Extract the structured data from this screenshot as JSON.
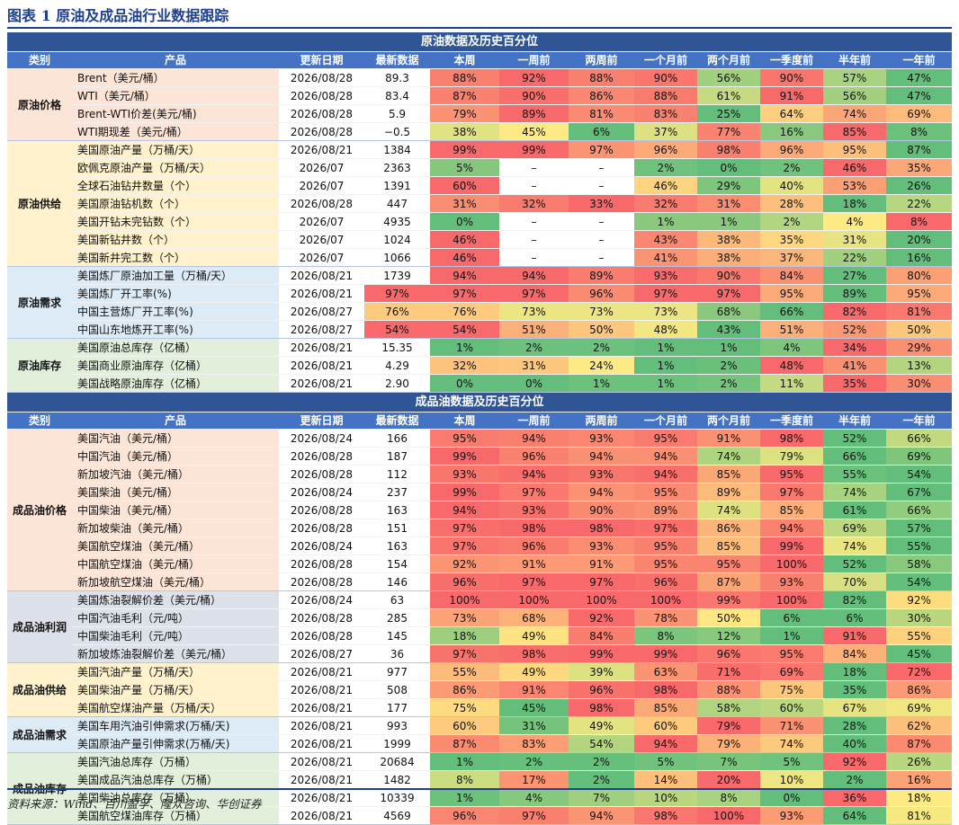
{
  "title": "图表 1 原油及成品油行业数据跟踪",
  "sections": [
    {
      "title": "原油数据及历史百分位",
      "columns": [
        "类别",
        "产品",
        "更新日期",
        "最新数据",
        "本周",
        "一周前",
        "两周前",
        "一个月前",
        "两个月前",
        "一季度前",
        "半年前",
        "一年前"
      ],
      "groups": [
        {
          "name": "原油价格",
          "rows": [
            [
              "Brent（美元/桶）",
              "2026/08/28",
              "89.3",
              "88%",
              "92%",
              "88%",
              "90%",
              "56%",
              "90%",
              "57%",
              "47%"
            ],
            [
              "WTI（美元/桶）",
              "2026/08/28",
              "83.4",
              "87%",
              "90%",
              "86%",
              "88%",
              "61%",
              "91%",
              "56%",
              "47%"
            ],
            [
              "Brent-WTI价差(美元/桶)",
              "2026/08/28",
              "5.9",
              "79%",
              "89%",
              "81%",
              "83%",
              "25%",
              "64%",
              "74%",
              "69%"
            ],
            [
              "WTI期现差（美元/桶）",
              "2026/08/28",
              "−0.5",
              "38%",
              "45%",
              "6%",
              "37%",
              "77%",
              "16%",
              "85%",
              "8%"
            ]
          ]
        },
        {
          "name": "原油供给",
          "rows": [
            [
              "美国原油产量（万桶/天）",
              "2026/08/21",
              "1384",
              "99%",
              "99%",
              "97%",
              "96%",
              "98%",
              "96%",
              "95%",
              "87%"
            ],
            [
              "欧佩克原油产量（万桶/天）",
              "2026/07",
              "2363",
              "5%",
              "–",
              "–",
              "2%",
              "0%",
              "2%",
              "46%",
              "35%"
            ],
            [
              "全球石油钻井数量（个）",
              "2026/07",
              "1391",
              "60%",
              "–",
              "–",
              "46%",
              "29%",
              "40%",
              "53%",
              "26%"
            ],
            [
              "美国原油钻机数（个）",
              "2026/08/28",
              "447",
              "31%",
              "32%",
              "33%",
              "32%",
              "31%",
              "28%",
              "18%",
              "22%"
            ],
            [
              "美国开钻未完钻数（个）",
              "2026/07",
              "4935",
              "0%",
              "–",
              "–",
              "1%",
              "1%",
              "2%",
              "4%",
              "8%"
            ],
            [
              "美国新钻井数（个）",
              "2026/07",
              "1024",
              "46%",
              "–",
              "–",
              "43%",
              "38%",
              "35%",
              "31%",
              "20%"
            ],
            [
              "美国新井完工数（个）",
              "2026/07",
              "1066",
              "46%",
              "–",
              "–",
              "41%",
              "38%",
              "37%",
              "22%",
              "16%"
            ]
          ]
        },
        {
          "name": "原油需求",
          "rows": [
            [
              "美国炼厂原油加工量（万桶/天）",
              "2026/08/21",
              "1739",
              "94%",
              "94%",
              "89%",
              "93%",
              "90%",
              "84%",
              "27%",
              "80%"
            ],
            [
              "美国炼厂开工率(%)",
              "2026/08/21",
              "97%",
              "97%",
              "97%",
              "96%",
              "97%",
              "97%",
              "95%",
              "89%",
              "95%"
            ],
            [
              "中国主营炼厂开工率(%)",
              "2026/08/27",
              "76%",
              "76%",
              "73%",
              "73%",
              "73%",
              "68%",
              "66%",
              "82%",
              "81%"
            ],
            [
              "中国山东地炼开工率(%)",
              "2026/08/27",
              "54%",
              "54%",
              "51%",
              "50%",
              "48%",
              "43%",
              "51%",
              "52%",
              "50%"
            ]
          ]
        },
        {
          "name": "原油库存",
          "rows": [
            [
              "美国原油总库存（亿桶）",
              "2026/08/21",
              "15.35",
              "1%",
              "2%",
              "2%",
              "1%",
              "1%",
              "4%",
              "34%",
              "29%"
            ],
            [
              "美国商业原油库存（亿桶）",
              "2026/08/21",
              "4.29",
              "32%",
              "31%",
              "24%",
              "1%",
              "2%",
              "48%",
              "41%",
              "13%"
            ],
            [
              "美国战略原油库存（亿桶）",
              "2026/08/21",
              "2.90",
              "0%",
              "0%",
              "1%",
              "1%",
              "2%",
              "11%",
              "35%",
              "30%"
            ]
          ]
        }
      ]
    },
    {
      "title": "成品油数据及历史百分位",
      "columns": [
        "类别",
        "产品",
        "更新日期",
        "最新数据",
        "本周",
        "一周前",
        "两周前",
        "一个月前",
        "两个月前",
        "一季度前",
        "半年前",
        "一年前"
      ],
      "groups": [
        {
          "name": "成品油价格",
          "rows": [
            [
              "美国汽油（美元/桶）",
              "2026/08/24",
              "166",
              "95%",
              "94%",
              "93%",
              "95%",
              "91%",
              "98%",
              "52%",
              "66%"
            ],
            [
              "中国汽油（美元/桶）",
              "2026/08/28",
              "187",
              "99%",
              "96%",
              "94%",
              "94%",
              "74%",
              "79%",
              "66%",
              "69%"
            ],
            [
              "新加坡汽油（美元/桶）",
              "2026/08/28",
              "112",
              "93%",
              "94%",
              "93%",
              "94%",
              "85%",
              "95%",
              "55%",
              "54%"
            ],
            [
              "美国柴油（美元/桶）",
              "2026/08/24",
              "237",
              "99%",
              "97%",
              "94%",
              "95%",
              "89%",
              "97%",
              "74%",
              "67%"
            ],
            [
              "中国柴油（美元/桶）",
              "2026/08/28",
              "163",
              "94%",
              "93%",
              "90%",
              "89%",
              "74%",
              "85%",
              "61%",
              "66%"
            ],
            [
              "新加坡柴油（美元/桶）",
              "2026/08/28",
              "151",
              "97%",
              "98%",
              "98%",
              "97%",
              "86%",
              "94%",
              "69%",
              "57%"
            ],
            [
              "美国航空煤油（美元/桶）",
              "2026/08/24",
              "163",
              "97%",
              "96%",
              "93%",
              "95%",
              "85%",
              "99%",
              "74%",
              "55%"
            ],
            [
              "中国航空煤油（美元/桶）",
              "2026/08/28",
              "154",
              "92%",
              "91%",
              "91%",
              "95%",
              "95%",
              "100%",
              "52%",
              "58%"
            ],
            [
              "新加坡航空煤油（美元/桶）",
              "2026/08/28",
              "146",
              "96%",
              "97%",
              "97%",
              "96%",
              "87%",
              "93%",
              "70%",
              "54%"
            ]
          ]
        },
        {
          "name": "成品油利润",
          "rows": [
            [
              "美国炼油裂解价差（美元/桶）",
              "2026/08/24",
              "63",
              "100%",
              "100%",
              "100%",
              "100%",
              "99%",
              "100%",
              "82%",
              "92%"
            ],
            [
              "中国汽油毛利（元/吨）",
              "2026/08/28",
              "285",
              "73%",
              "68%",
              "92%",
              "78%",
              "50%",
              "6%",
              "6%",
              "30%"
            ],
            [
              "中国柴油毛利（元/吨）",
              "2026/08/28",
              "145",
              "18%",
              "49%",
              "84%",
              "8%",
              "12%",
              "1%",
              "91%",
              "55%"
            ],
            [
              "新加坡炼油裂解价差（美元/桶）",
              "2026/08/27",
              "36",
              "97%",
              "98%",
              "99%",
              "99%",
              "96%",
              "95%",
              "84%",
              "45%"
            ]
          ]
        },
        {
          "name": "成品油供给",
          "rows": [
            [
              "美国汽油产量（万桶/天）",
              "2026/08/21",
              "977",
              "55%",
              "49%",
              "39%",
              "63%",
              "71%",
              "69%",
              "18%",
              "72%"
            ],
            [
              "美国柴油产量（万桶/天）",
              "2026/08/21",
              "508",
              "86%",
              "91%",
              "96%",
              "98%",
              "88%",
              "75%",
              "35%",
              "86%"
            ],
            [
              "美国航空煤油产量（万桶/天）",
              "2026/08/21",
              "177",
              "75%",
              "45%",
              "98%",
              "85%",
              "58%",
              "60%",
              "67%",
              "69%"
            ]
          ]
        },
        {
          "name": "成品油需求",
          "rows": [
            [
              "美国车用汽油引伸需求(万桶/天)",
              "2026/08/21",
              "993",
              "60%",
              "31%",
              "49%",
              "60%",
              "79%",
              "71%",
              "28%",
              "62%"
            ],
            [
              "美国原油产量引伸需求(万桶/天)",
              "2026/08/21",
              "1999",
              "87%",
              "83%",
              "54%",
              "94%",
              "79%",
              "74%",
              "40%",
              "87%"
            ]
          ]
        },
        {
          "name": "成品油库存",
          "rows": [
            [
              "美国汽油总库存（万桶）",
              "2026/08/21",
              "20684",
              "1%",
              "2%",
              "2%",
              "5%",
              "7%",
              "5%",
              "92%",
              "26%"
            ],
            [
              "美国成品汽油总库存（万桶）",
              "2026/08/21",
              "1482",
              "8%",
              "17%",
              "2%",
              "14%",
              "20%",
              "10%",
              "2%",
              "16%"
            ],
            [
              "美国柴油总库存（万桶）",
              "2026/08/21",
              "10339",
              "1%",
              "4%",
              "7%",
              "10%",
              "8%",
              "0%",
              "36%",
              "18%"
            ],
            [
              "美国航空煤油库存（万桶）",
              "2026/08/21",
              "4569",
              "96%",
              "97%",
              "94%",
              "98%",
              "100%",
              "93%",
              "64%",
              "81%"
            ]
          ]
        }
      ]
    }
  ],
  "source": "资料来源：Wind、百川盈孚、隆众咨询、华创证券"
}
